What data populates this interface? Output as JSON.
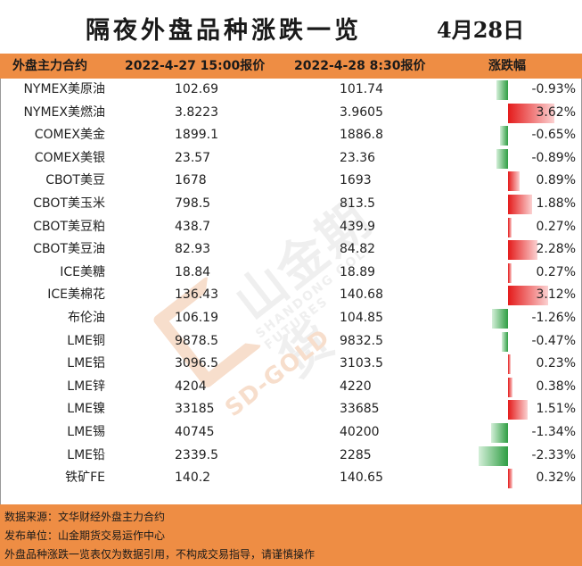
{
  "title": "隔夜外盘品种涨跌一览",
  "date": "4月28日",
  "columns": {
    "name": "外盘主力合约",
    "price1": "2022-4-27 15:00报价",
    "price2": "2022-4-28 8:30报价",
    "change": "涨跌幅"
  },
  "colors": {
    "header_bg": "#ee8d44",
    "footer_bg": "#ee8d44",
    "positive": "#e41b1b",
    "negative": "#2f9e43"
  },
  "rows": [
    {
      "name": "NYMEX美原油",
      "p1": "102.69",
      "p2": "101.74",
      "pct": "-0.93%",
      "value": -0.93
    },
    {
      "name": "NYMEX美燃油",
      "p1": "3.8223",
      "p2": "3.9605",
      "pct": "3.62%",
      "value": 3.62
    },
    {
      "name": "COMEX美金",
      "p1": "1899.1",
      "p2": "1886.8",
      "pct": "-0.65%",
      "value": -0.65
    },
    {
      "name": "COMEX美银",
      "p1": "23.57",
      "p2": "23.36",
      "pct": "-0.89%",
      "value": -0.89
    },
    {
      "name": "CBOT美豆",
      "p1": "1678",
      "p2": "1693",
      "pct": "0.89%",
      "value": 0.89
    },
    {
      "name": "CBOT美玉米",
      "p1": "798.5",
      "p2": "813.5",
      "pct": "1.88%",
      "value": 1.88
    },
    {
      "name": "CBOT美豆粕",
      "p1": "438.7",
      "p2": "439.9",
      "pct": "0.27%",
      "value": 0.27
    },
    {
      "name": "CBOT美豆油",
      "p1": "82.93",
      "p2": "84.82",
      "pct": "2.28%",
      "value": 2.28
    },
    {
      "name": "ICE美糖",
      "p1": "18.84",
      "p2": "18.89",
      "pct": "0.27%",
      "value": 0.27
    },
    {
      "name": "ICE美棉花",
      "p1": "136.43",
      "p2": "140.68",
      "pct": "3.12%",
      "value": 3.12
    },
    {
      "name": "布伦油",
      "p1": "106.19",
      "p2": "104.85",
      "pct": "-1.26%",
      "value": -1.26
    },
    {
      "name": "LME铜",
      "p1": "9878.5",
      "p2": "9832.5",
      "pct": "-0.47%",
      "value": -0.47
    },
    {
      "name": "LME铝",
      "p1": "3096.5",
      "p2": "3103.5",
      "pct": "0.23%",
      "value": 0.23
    },
    {
      "name": "LME锌",
      "p1": "4204",
      "p2": "4220",
      "pct": "0.38%",
      "value": 0.38
    },
    {
      "name": "LME镍",
      "p1": "33185",
      "p2": "33685",
      "pct": "1.51%",
      "value": 1.51
    },
    {
      "name": "LME锡",
      "p1": "40745",
      "p2": "40200",
      "pct": "-1.34%",
      "value": -1.34
    },
    {
      "name": "LME铅",
      "p1": "2339.5",
      "p2": "2285",
      "pct": "-2.33%",
      "value": -2.33
    },
    {
      "name": "铁矿FE",
      "p1": "140.2",
      "p2": "140.65",
      "pct": "0.32%",
      "value": 0.32
    }
  ],
  "footer": {
    "line1": "数据来源：文华财经外盘主力合约",
    "line2": "发布单位：山金期货交易运作中心",
    "line3": "外盘品种涨跌一览表仅为数据引用，不构成交易指导，请谨慎操作"
  },
  "watermark": {
    "cn": "山金期货",
    "en": "SHANDONG GOLD FUTURES",
    "brand": "SD-GOLD"
  }
}
